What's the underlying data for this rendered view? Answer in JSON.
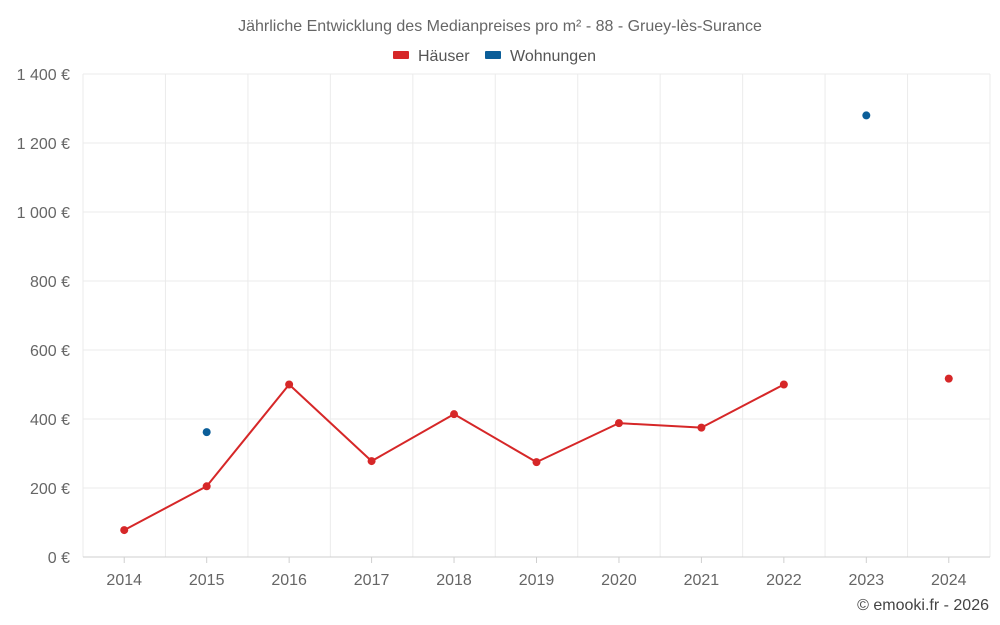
{
  "chart_data": {
    "type": "line",
    "title": "Jährliche Entwicklung des Medianpreises pro m² - 88 - Gruey-lès-Surance",
    "x": [
      "2014",
      "2015",
      "2016",
      "2017",
      "2018",
      "2019",
      "2020",
      "2021",
      "2022",
      "2023",
      "2024"
    ],
    "ylim": [
      0,
      1400
    ],
    "y_ticks": [
      0,
      200,
      400,
      600,
      800,
      1000,
      1200,
      1400
    ],
    "y_tick_labels": [
      "0 €",
      "200 €",
      "400 €",
      "600 €",
      "800 €",
      "1 000 €",
      "1 200 €",
      "1 400 €"
    ],
    "grid": true,
    "legend_position": "top-center",
    "series": [
      {
        "name": "Häuser",
        "color": "#d62728",
        "values": [
          78,
          205,
          500,
          278,
          414,
          275,
          388,
          375,
          500,
          null,
          517
        ]
      },
      {
        "name": "Wohnungen",
        "color": "#0b5e99",
        "values": [
          null,
          362,
          null,
          null,
          null,
          null,
          null,
          null,
          null,
          1280,
          null
        ]
      }
    ]
  },
  "credit": "© emooki.fr - 2026"
}
